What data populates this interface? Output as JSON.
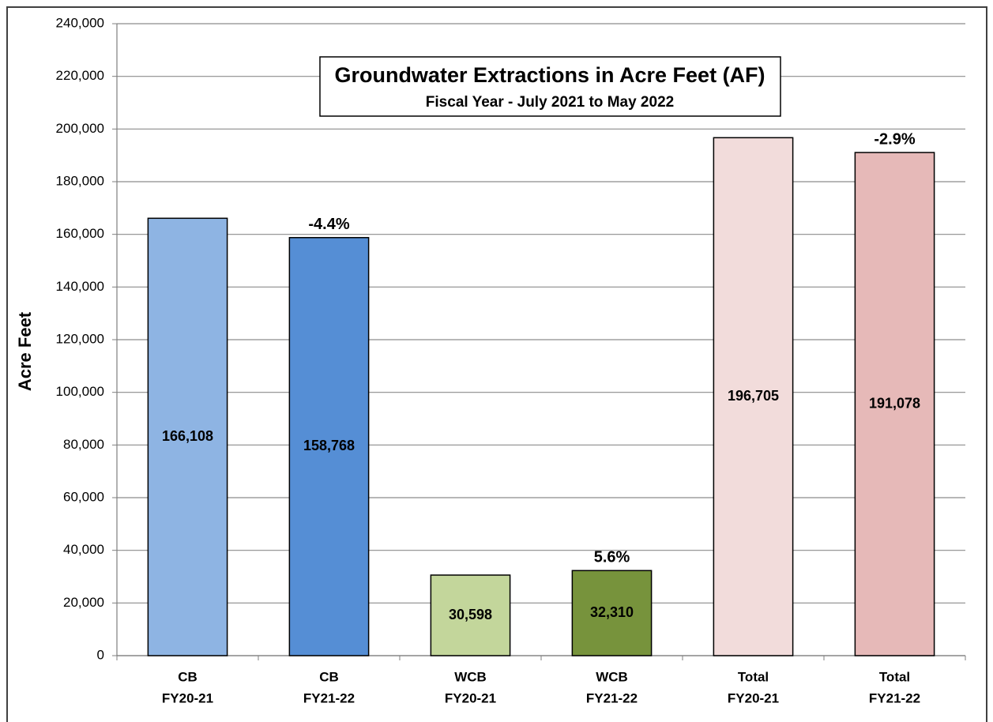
{
  "chart_data": {
    "type": "bar",
    "title": "Groundwater Extractions in Acre Feet (AF)",
    "subtitle": "Fiscal Year - July 2021 to May 2022",
    "y_label": "Acre Feet",
    "categories": [
      [
        "CB",
        "FY20-21"
      ],
      [
        "CB",
        "FY21-22"
      ],
      [
        "WCB",
        "FY20-21"
      ],
      [
        "WCB",
        "FY21-22"
      ],
      [
        "Total",
        "FY20-21"
      ],
      [
        "Total",
        "FY21-22"
      ]
    ],
    "values": [
      166108,
      158768,
      30598,
      32310,
      196705,
      191078
    ],
    "value_labels": [
      "166,108",
      "158,768",
      "30,598",
      "32,310",
      "196,705",
      "191,078"
    ],
    "change_labels": [
      null,
      "-4.4%",
      null,
      "5.6%",
      null,
      "-2.9%"
    ],
    "colors": [
      "#8eb4e3",
      "#558ed5",
      "#c3d69b",
      "#77933c",
      "#f2dcdb",
      "#e6b9b8"
    ],
    "ylim": [
      0,
      240000
    ],
    "yticks": [
      0,
      {
        "value": 20000,
        "label": "20,000"
      },
      {
        "value": 40000,
        "label": "40,000"
      },
      {
        "value": 60000,
        "label": "60,000"
      },
      {
        "value": 80000,
        "label": "80,000"
      },
      {
        "value": 100000,
        "label": "100,000"
      },
      {
        "value": 120000,
        "label": "120,000"
      },
      {
        "value": 140000,
        "label": "140,000"
      },
      {
        "value": 160000,
        "label": "160,000"
      },
      {
        "value": 180000,
        "label": "180,000"
      },
      {
        "value": 200000,
        "label": "200,000"
      },
      {
        "value": 220000,
        "label": "220,000"
      },
      {
        "value": 240000,
        "label": "240,000"
      }
    ],
    "grid": true
  }
}
